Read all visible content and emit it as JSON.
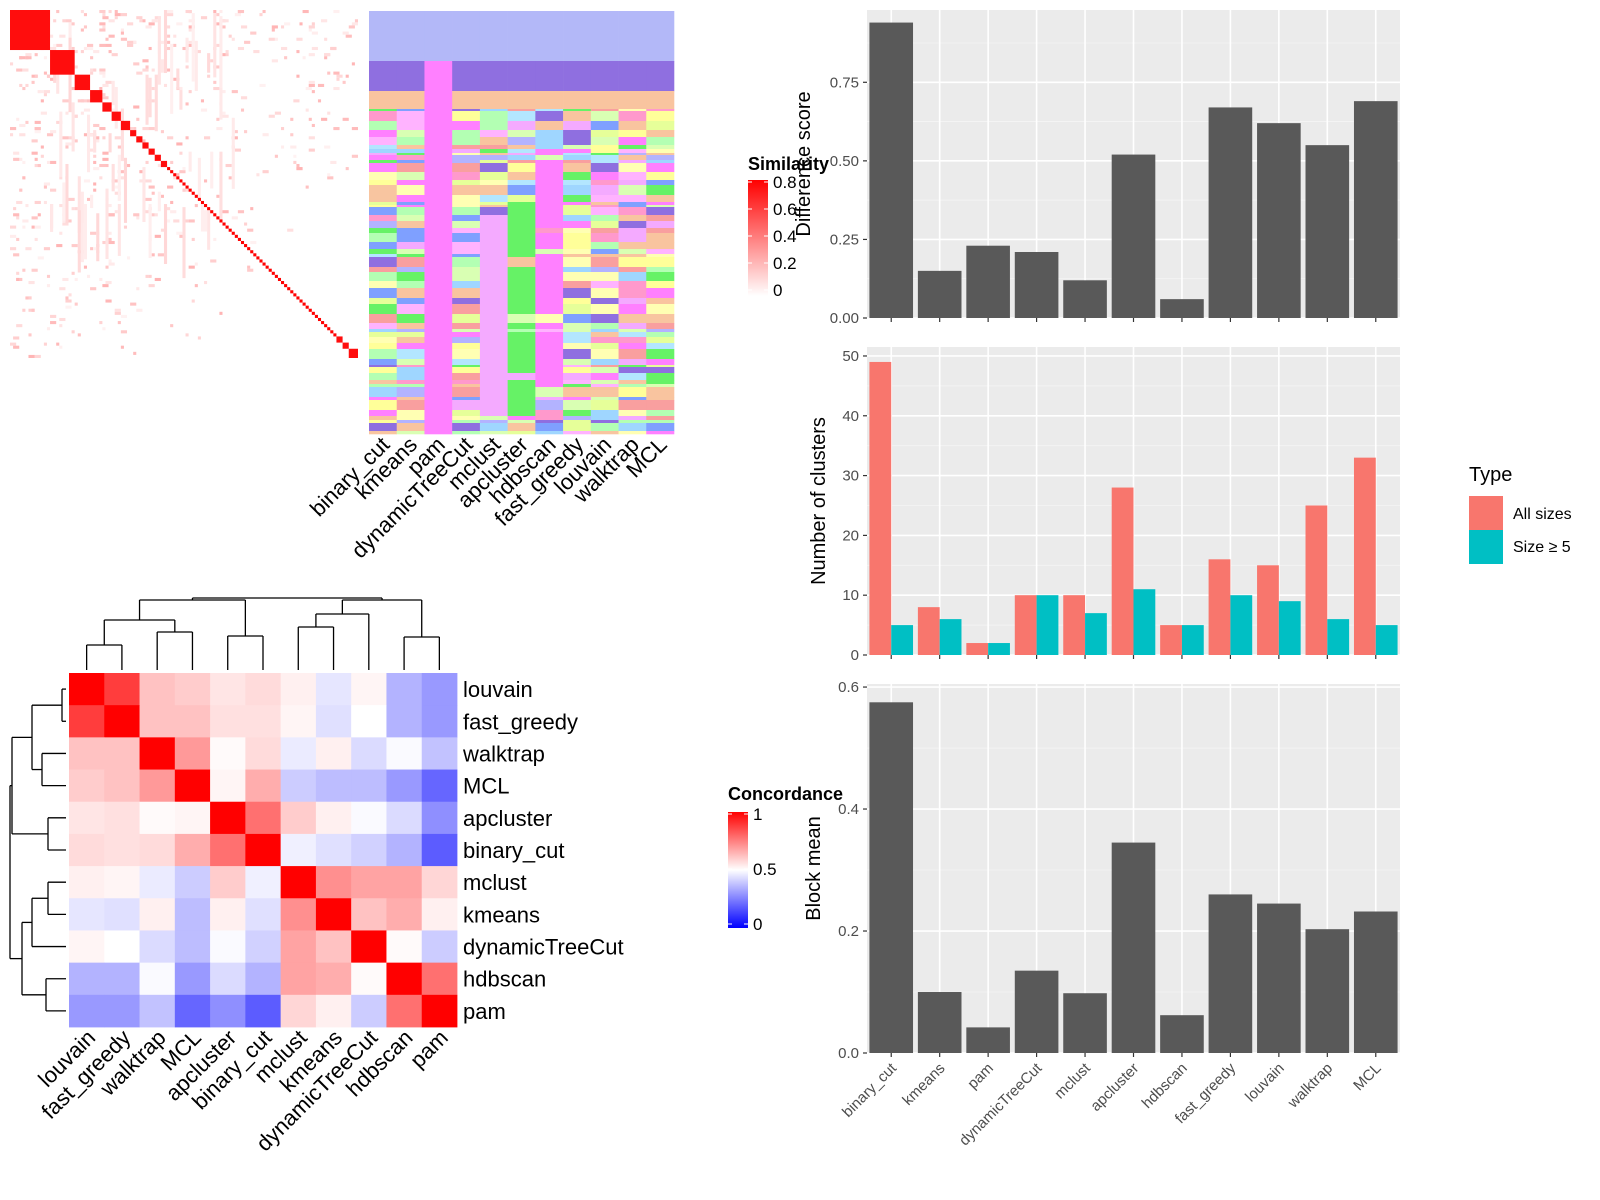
{
  "similarity_legend": {
    "title": "Similarity",
    "ticks": [
      "0.8",
      "0.6",
      "0.4",
      "0.2",
      "0"
    ]
  },
  "concordance_legend": {
    "title": "Concordance",
    "ticks": [
      "1",
      "0.5",
      "0"
    ]
  },
  "type_legend": {
    "title": "Type",
    "items": [
      {
        "label": "All sizes",
        "color": "#f8766d"
      },
      {
        "label": "Size ≥ 5",
        "color": "#00bfc4"
      }
    ]
  },
  "colors": {
    "panel_bg": "#ebebeb",
    "bar_dark": "#595959",
    "heat_high": "#ff0000",
    "heat_mid": "#ffffff",
    "heat_low": "#0000ff"
  },
  "chart_data": [
    {
      "type": "heatmap",
      "description": "Similarity matrix of terms (diagonal block structure)",
      "legend": "Similarity",
      "range": [
        0,
        0.8
      ]
    },
    {
      "type": "heatmap",
      "description": "Cluster assignment per method",
      "columns": [
        "binary_cut",
        "kmeans",
        "pam",
        "dynamicTreeCut",
        "mclust",
        "apcluster",
        "hdbscan",
        "fast_greedy",
        "louvain",
        "walktrap",
        "MCL"
      ]
    },
    {
      "type": "heatmap",
      "legend": "Concordance",
      "range": [
        0,
        1
      ],
      "rows": [
        "louvain",
        "fast_greedy",
        "walktrap",
        "MCL",
        "apcluster",
        "binary_cut",
        "mclust",
        "kmeans",
        "dynamicTreeCut",
        "hdbscan",
        "pam"
      ],
      "columns": [
        "louvain",
        "fast_greedy",
        "walktrap",
        "MCL",
        "apcluster",
        "binary_cut",
        "mclust",
        "kmeans",
        "dynamicTreeCut",
        "hdbscan",
        "pam"
      ],
      "values": [
        [
          1.0,
          0.88,
          0.62,
          0.6,
          0.55,
          0.57,
          0.53,
          0.45,
          0.52,
          0.35,
          0.3
        ],
        [
          0.88,
          1.0,
          0.62,
          0.62,
          0.56,
          0.56,
          0.52,
          0.44,
          0.5,
          0.35,
          0.3
        ],
        [
          0.62,
          0.62,
          1.0,
          0.7,
          0.51,
          0.57,
          0.46,
          0.53,
          0.43,
          0.49,
          0.38
        ],
        [
          0.6,
          0.62,
          0.7,
          1.0,
          0.52,
          0.66,
          0.4,
          0.37,
          0.37,
          0.3,
          0.2
        ],
        [
          0.55,
          0.56,
          0.51,
          0.52,
          1.0,
          0.78,
          0.6,
          0.53,
          0.49,
          0.43,
          0.28
        ],
        [
          0.57,
          0.56,
          0.57,
          0.66,
          0.78,
          1.0,
          0.47,
          0.44,
          0.41,
          0.35,
          0.18
        ],
        [
          0.53,
          0.52,
          0.46,
          0.4,
          0.6,
          0.47,
          1.0,
          0.72,
          0.68,
          0.68,
          0.58
        ],
        [
          0.45,
          0.44,
          0.53,
          0.37,
          0.53,
          0.44,
          0.72,
          1.0,
          0.62,
          0.66,
          0.53
        ],
        [
          0.52,
          0.5,
          0.43,
          0.37,
          0.49,
          0.41,
          0.68,
          0.62,
          1.0,
          0.51,
          0.4
        ],
        [
          0.35,
          0.35,
          0.49,
          0.3,
          0.43,
          0.35,
          0.68,
          0.66,
          0.51,
          1.0,
          0.78
        ],
        [
          0.3,
          0.3,
          0.38,
          0.2,
          0.28,
          0.18,
          0.58,
          0.53,
          0.4,
          0.78,
          1.0
        ]
      ]
    },
    {
      "type": "bar",
      "categories": [
        "binary_cut",
        "kmeans",
        "pam",
        "dynamicTreeCut",
        "mclust",
        "apcluster",
        "hdbscan",
        "fast_greedy",
        "louvain",
        "walktrap",
        "MCL"
      ],
      "values": [
        0.94,
        0.15,
        0.23,
        0.21,
        0.12,
        0.52,
        0.06,
        0.67,
        0.62,
        0.55,
        0.69
      ],
      "ylabel": "Difference score",
      "ylim": [
        0,
        0.98
      ],
      "yticks": [
        0,
        0.25,
        0.5,
        0.75
      ],
      "ytick_labels": [
        "0.00",
        "0.25",
        "0.50",
        "0.75"
      ]
    },
    {
      "type": "bar",
      "categories": [
        "binary_cut",
        "kmeans",
        "pam",
        "dynamicTreeCut",
        "mclust",
        "apcluster",
        "hdbscan",
        "fast_greedy",
        "louvain",
        "walktrap",
        "MCL"
      ],
      "series": [
        {
          "name": "All sizes",
          "values": [
            49,
            8,
            2,
            10,
            10,
            28,
            5,
            16,
            15,
            25,
            33
          ]
        },
        {
          "name": "Size ≥ 5",
          "values": [
            5,
            6,
            2,
            10,
            7,
            11,
            5,
            10,
            9,
            6,
            5
          ]
        }
      ],
      "ylabel": "Number of clusters",
      "ylim": [
        0,
        51.5
      ],
      "yticks": [
        0,
        10,
        20,
        30,
        40,
        50
      ],
      "ytick_labels": [
        "0",
        "10",
        "20",
        "30",
        "40",
        "50"
      ]
    },
    {
      "type": "bar",
      "categories": [
        "binary_cut",
        "kmeans",
        "pam",
        "dynamicTreeCut",
        "mclust",
        "apcluster",
        "hdbscan",
        "fast_greedy",
        "louvain",
        "walktrap",
        "MCL"
      ],
      "values": [
        0.575,
        0.1,
        0.042,
        0.135,
        0.098,
        0.345,
        0.062,
        0.26,
        0.245,
        0.203,
        0.232
      ],
      "ylabel": "Block mean",
      "ylim": [
        0,
        0.605
      ],
      "yticks": [
        0,
        0.2,
        0.4,
        0.6
      ],
      "ytick_labels": [
        "0.0",
        "0.2",
        "0.4",
        "0.6"
      ]
    }
  ]
}
